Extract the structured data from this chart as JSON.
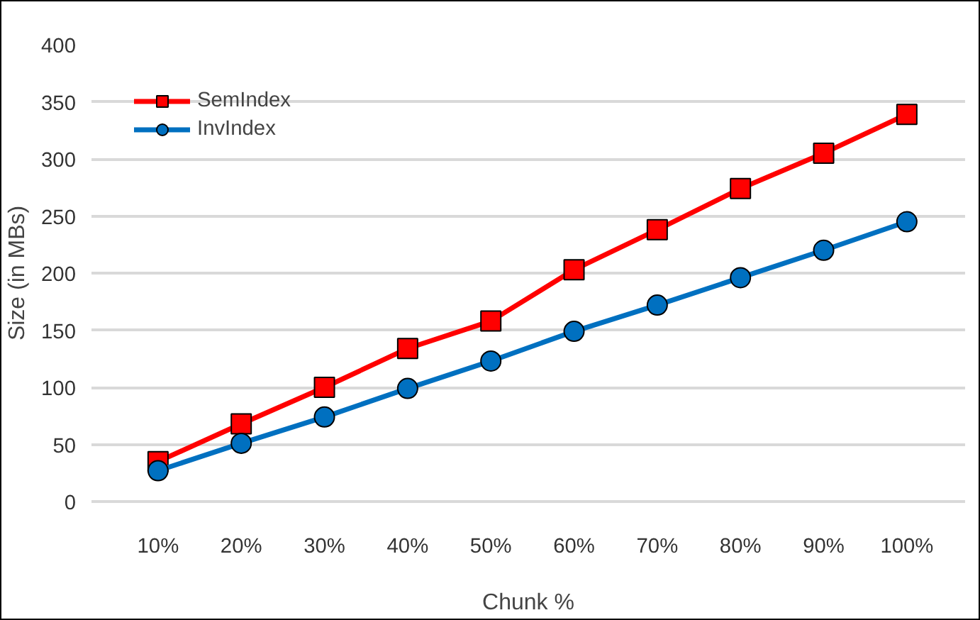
{
  "chart_data": {
    "type": "line",
    "xlabel": "Chunk %",
    "ylabel": "Size (in MBs)",
    "x": [
      10,
      20,
      30,
      40,
      50,
      60,
      70,
      80,
      90,
      100
    ],
    "xlim": [
      2,
      107
    ],
    "xticks": [
      {
        "value": 10,
        "label": "10%"
      },
      {
        "value": 20,
        "label": "20%"
      },
      {
        "value": 30,
        "label": "30%"
      },
      {
        "value": 40,
        "label": "40%"
      },
      {
        "value": 50,
        "label": "50%"
      },
      {
        "value": 60,
        "label": "60%"
      },
      {
        "value": 70,
        "label": "70%"
      },
      {
        "value": 80,
        "label": "80%"
      },
      {
        "value": 90,
        "label": "90%"
      },
      {
        "value": 100,
        "label": "100%"
      }
    ],
    "ylim": [
      0,
      400
    ],
    "yticks": [
      0,
      50,
      100,
      150,
      200,
      250,
      300,
      350,
      400
    ],
    "grid": "y",
    "legend": "top left",
    "series": [
      {
        "name": "SemIndex",
        "color": "#ff0000",
        "marker": "square",
        "values": [
          35,
          68,
          100,
          134,
          158,
          203,
          238,
          274,
          305,
          339
        ]
      },
      {
        "name": "InvIndex",
        "color": "#0070c0",
        "marker": "circle",
        "values": [
          27,
          51,
          74,
          99,
          123,
          149,
          172,
          196,
          220,
          245
        ]
      }
    ]
  }
}
